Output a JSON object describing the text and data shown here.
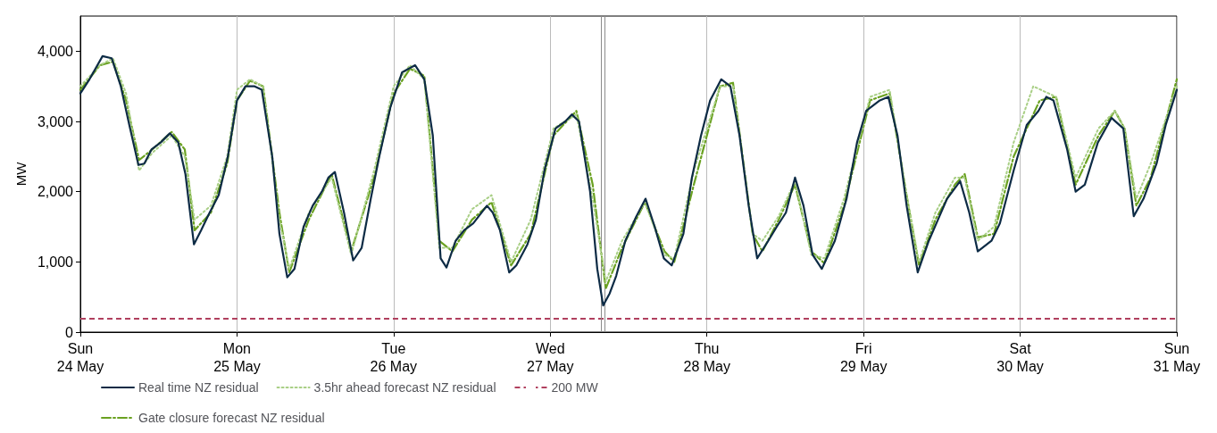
{
  "chart_data": {
    "type": "line",
    "ylabel": "MW",
    "xlim": [
      "--05-24",
      "--05-31"
    ],
    "xticks": [
      {
        "value": "--05-24",
        "label": "Sun\n24 May"
      },
      {
        "value": "--05-25",
        "label": "Mon\n25 May"
      },
      {
        "value": "--05-26",
        "label": "Tue\n26 May"
      },
      {
        "value": "--05-27",
        "label": "Wed\n27 May"
      },
      {
        "value": "--05-28",
        "label": "Thu\n28 May"
      },
      {
        "value": "--05-29",
        "label": "Fri\n29 May"
      },
      {
        "value": "--05-30",
        "label": "Sat\n30 May"
      },
      {
        "value": "--05-31",
        "label": "Sun\n31 May"
      }
    ],
    "ylim": [
      0,
      4500
    ],
    "yticks": [
      {
        "value": 0,
        "label": "0"
      },
      {
        "value": 1000,
        "label": "1,000"
      },
      {
        "value": 2000,
        "label": "2,000"
      },
      {
        "value": 3000,
        "label": "3,000"
      },
      {
        "value": 4000,
        "label": "4,000"
      }
    ],
    "grid": "x",
    "legend": "bottom",
    "marker": "none",
    "series": [
      {
        "name": "Real time NZ residual",
        "color": "#0d2b45",
        "line_style": "solid",
        "x": [
          "--05-24T00:00",
          "--05-24T01:24",
          "--05-24T03:24",
          "--05-24T04:48",
          "--05-24T06:12",
          "--05-24T07:30",
          "--05-24T08:54",
          "--05-24T09:48",
          "--05-24T10:54",
          "--05-24T12:18",
          "--05-24T13:42",
          "--05-24T15:00",
          "--05-24T16:06",
          "--05-24T17:24",
          "--05-24T18:30",
          "--05-24T19:48",
          "--05-24T21:12",
          "--05-24T22:36",
          "--05-25T00:00",
          "--05-25T01:18",
          "--05-25T02:42",
          "--05-25T03:48",
          "--05-25T05:24",
          "--05-25T06:30",
          "--05-25T07:42",
          "--05-25T08:48",
          "--05-25T10:12",
          "--05-25T11:36",
          "--05-25T13:00",
          "--05-25T14:00",
          "--05-25T15:00",
          "--05-25T16:24",
          "--05-25T17:48",
          "--05-25T19:06",
          "--05-25T20:30",
          "--05-25T21:48",
          "--05-25T23:30",
          "--05-26T01:18",
          "--05-26T03:18",
          "--05-26T04:42",
          "--05-26T06:00",
          "--05-26T07:12",
          "--05-26T08:06",
          "--05-26T09:30",
          "--05-26T10:48",
          "--05-26T12:12",
          "--05-26T14:18",
          "--05-26T15:12",
          "--05-26T16:18",
          "--05-26T17:42",
          "--05-26T18:48",
          "--05-26T20:30",
          "--05-26T21:48",
          "--05-26T23:06",
          "--05-27T00:48",
          "--05-27T02:18",
          "--05-27T03:18",
          "--05-27T04:24",
          "--05-27T06:06",
          "--05-27T07:12",
          "--05-27T08:06",
          "--05-27T09:06",
          "--05-27T10:06",
          "--05-27T11:30",
          "--05-27T13:12",
          "--05-27T14:36",
          "--05-27T16:00",
          "--05-27T17:24",
          "--05-27T18:36",
          "--05-27T20:24",
          "--05-27T21:42",
          "--05-27T23:06",
          "--05-28T00:30",
          "--05-28T02:12",
          "--05-28T03:36",
          "--05-28T05:00",
          "--05-28T06:24",
          "--05-28T07:42",
          "--05-28T09:24",
          "--05-28T10:42",
          "--05-28T12:06",
          "--05-28T13:30",
          "--05-28T14:48",
          "--05-28T16:12",
          "--05-28T17:36",
          "--05-28T19:36",
          "--05-28T21:24",
          "--05-28T23:00",
          "--05-29T00:24",
          "--05-29T02:30",
          "--05-29T03:48",
          "--05-29T05:12",
          "--05-29T06:36",
          "--05-29T08:18",
          "--05-29T10:00",
          "--05-29T11:24",
          "--05-29T12:48",
          "--05-29T14:48",
          "--05-29T16:12",
          "--05-29T17:30",
          "--05-29T19:36",
          "--05-29T20:54",
          "--05-29T23:00",
          "--05-30T01:00",
          "--05-30T02:48",
          "--05-30T04:00",
          "--05-30T05:06",
          "--05-30T07:12",
          "--05-30T08:30",
          "--05-30T09:54",
          "--05-30T11:54",
          "--05-30T14:00",
          "--05-30T15:48",
          "--05-30T17:24",
          "--05-30T18:54",
          "--05-30T20:54",
          "--05-30T22:18",
          "--05-31T00:00"
        ],
        "values": [
          3400,
          3600,
          3930,
          3900,
          3500,
          2950,
          2380,
          2400,
          2600,
          2700,
          2830,
          2700,
          2250,
          1250,
          1450,
          1700,
          1950,
          2500,
          3300,
          3500,
          3500,
          3450,
          2500,
          1400,
          780,
          900,
          1500,
          1800,
          2000,
          2200,
          2280,
          1700,
          1020,
          1200,
          1900,
          2500,
          3200,
          3700,
          3800,
          3600,
          2800,
          1050,
          920,
          1300,
          1450,
          1550,
          1800,
          1700,
          1450,
          850,
          950,
          1250,
          1600,
          2300,
          2900,
          3000,
          3100,
          3000,
          2000,
          900,
          380,
          550,
          800,
          1300,
          1650,
          1900,
          1500,
          1050,
          950,
          1400,
          2200,
          2800,
          3300,
          3600,
          3500,
          2800,
          1800,
          1050,
          1300,
          1500,
          1700,
          2200,
          1800,
          1100,
          900,
          1300,
          1900,
          2700,
          3150,
          3300,
          3350,
          2800,
          1800,
          850,
          1300,
          1600,
          1900,
          2150,
          1700,
          1150,
          1300,
          1550,
          2300,
          2950,
          3150,
          3350,
          3300,
          2600,
          2000,
          2100,
          2700,
          3050,
          2900,
          1650,
          1900,
          2400,
          2950,
          3450
        ]
      },
      {
        "name": "3.5hr ahead forecast NZ residual",
        "color": "#a9cf86",
        "line_style": "dotted",
        "x": [
          "--05-24T00:00",
          "--05-24T03:00",
          "--05-24T05:00",
          "--05-24T07:00",
          "--05-24T09:00",
          "--05-24T11:00",
          "--05-24T14:00",
          "--05-24T16:00",
          "--05-24T17:30",
          "--05-24T20:00",
          "--05-24T22:30",
          "--05-25T00:00",
          "--05-25T02:00",
          "--05-25T04:00",
          "--05-25T06:30",
          "--05-25T08:00",
          "--05-25T11:00",
          "--05-25T14:30",
          "--05-25T17:30",
          "--05-25T21:00",
          "--05-26T00:00",
          "--05-26T02:30",
          "--05-26T04:42",
          "--05-26T07:00",
          "--05-26T09:00",
          "--05-26T12:00",
          "--05-26T15:00",
          "--05-26T18:00",
          "--05-26T21:00",
          "--05-27T00:30",
          "--05-27T04:00",
          "--05-27T06:30",
          "--05-27T08:30",
          "--05-27T11:00",
          "--05-27T14:30",
          "--05-27T17:30",
          "--05-27T19:00",
          "--05-27T22:00",
          "--05-28T02:00",
          "--05-28T04:00",
          "--05-28T07:00",
          "--05-28T08:30",
          "--05-28T11:00",
          "--05-28T13:30",
          "--05-28T16:00",
          "--05-28T18:00",
          "--05-28T21:00",
          "--05-29T01:00",
          "--05-29T04:00",
          "--05-29T06:30",
          "--05-29T08:30",
          "--05-29T11:00",
          "--05-29T14:00",
          "--05-29T15:30",
          "--05-29T17:30",
          "--05-29T20:00",
          "--05-29T23:00",
          "--05-30T02:00",
          "--05-30T05:30",
          "--05-30T08:30",
          "--05-30T12:00",
          "--05-30T14:30",
          "--05-30T16:00",
          "--05-30T17:48",
          "--05-30T20:00",
          "--05-31T00:00"
        ],
        "values": [
          3500,
          3800,
          3900,
          3400,
          2300,
          2550,
          2800,
          2500,
          1600,
          1800,
          2500,
          3450,
          3600,
          3500,
          1600,
          900,
          1700,
          2200,
          1100,
          2300,
          3500,
          3800,
          3600,
          1200,
          1200,
          1750,
          1950,
          1000,
          1600,
          2900,
          3100,
          1900,
          720,
          1300,
          1850,
          1100,
          1050,
          2300,
          3500,
          3500,
          1400,
          1300,
          1650,
          2150,
          1100,
          1050,
          1900,
          3350,
          3450,
          2000,
          1000,
          1700,
          2200,
          2200,
          1300,
          1500,
          2700,
          3500,
          3350,
          2200,
          2900,
          3150,
          2900,
          1900,
          2400,
          3500
        ]
      },
      {
        "name": "Gate closure forecast NZ residual",
        "color": "#6aa121",
        "line_style": "dashdot",
        "x": [
          "--05-24T00:00",
          "--05-24T03:00",
          "--05-24T05:00",
          "--05-24T07:00",
          "--05-24T09:00",
          "--05-24T11:00",
          "--05-24T14:00",
          "--05-24T16:00",
          "--05-24T17:30",
          "--05-24T20:00",
          "--05-24T22:30",
          "--05-25T00:00",
          "--05-25T02:00",
          "--05-25T04:00",
          "--05-25T06:30",
          "--05-25T08:00",
          "--05-25T11:00",
          "--05-25T14:30",
          "--05-25T17:30",
          "--05-25T21:00",
          "--05-26T00:00",
          "--05-26T02:30",
          "--05-26T04:42",
          "--05-26T07:00",
          "--05-26T09:00",
          "--05-26T12:00",
          "--05-26T15:00",
          "--05-26T18:00",
          "--05-26T21:00",
          "--05-27T00:30",
          "--05-27T04:00",
          "--05-27T06:30",
          "--05-27T08:30",
          "--05-27T11:00",
          "--05-27T14:30",
          "--05-27T17:30",
          "--05-27T19:00",
          "--05-27T22:00",
          "--05-28T02:00",
          "--05-28T04:00",
          "--05-28T07:00",
          "--05-28T08:30",
          "--05-28T11:00",
          "--05-28T13:30",
          "--05-28T16:00",
          "--05-28T18:00",
          "--05-28T21:00",
          "--05-29T01:00",
          "--05-29T04:00",
          "--05-29T06:30",
          "--05-29T08:30",
          "--05-29T11:00",
          "--05-29T14:00",
          "--05-29T15:30",
          "--05-29T17:30",
          "--05-29T20:00",
          "--05-29T23:00",
          "--05-30T03:00",
          "--05-30T05:30",
          "--05-30T08:30",
          "--05-30T12:00",
          "--05-30T14:30",
          "--05-30T16:00",
          "--05-30T17:48",
          "--05-30T20:00",
          "--05-31T00:00"
        ],
        "values": [
          3450,
          3800,
          3850,
          3300,
          2450,
          2600,
          2850,
          2600,
          1450,
          1700,
          2400,
          3300,
          3580,
          3500,
          1700,
          850,
          1600,
          2250,
          1150,
          2200,
          3400,
          3750,
          3650,
          1300,
          1150,
          1600,
          1850,
          950,
          1400,
          2800,
          3150,
          2100,
          620,
          1200,
          1850,
          1150,
          1000,
          2100,
          3500,
          3550,
          1400,
          1150,
          1600,
          2100,
          1150,
          980,
          1800,
          3300,
          3400,
          2000,
          950,
          1600,
          2100,
          2250,
          1350,
          1400,
          2500,
          3300,
          3350,
          2100,
          2800,
          3150,
          2900,
          1800,
          2200,
          3600
        ]
      }
    ],
    "ref_lines": [
      {
        "axis": "y",
        "value": 200,
        "label": "200 MW",
        "color": "#b0405e",
        "line_style": "dashed"
      },
      {
        "axis": "x",
        "value": "--05-27T07:48",
        "color": "#8c8c8c",
        "line_style": "solid"
      },
      {
        "axis": "x",
        "value": "--05-27T08:18",
        "color": "#8c8c8c",
        "line_style": "solid"
      }
    ]
  }
}
